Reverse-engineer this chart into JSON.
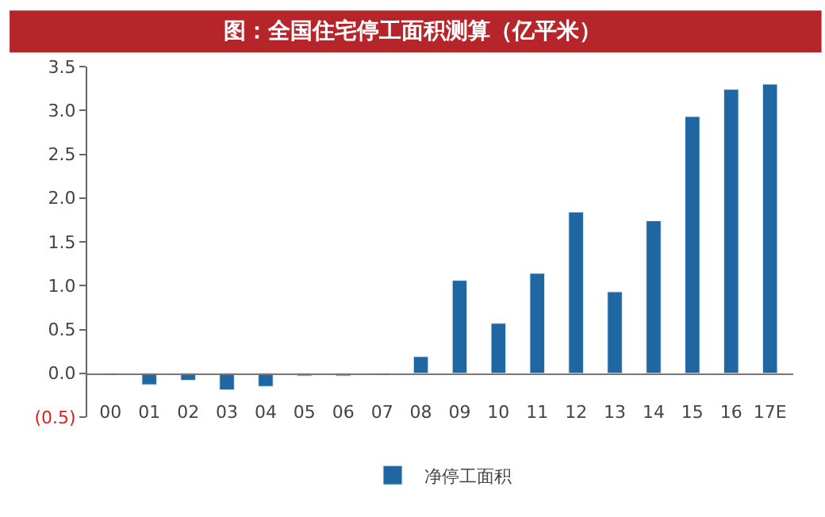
{
  "chart_data": {
    "type": "bar",
    "title": "图：全国住宅停工面积测算（亿平米）",
    "categories": [
      "00",
      "01",
      "02",
      "03",
      "04",
      "05",
      "06",
      "07",
      "08",
      "09",
      "10",
      "11",
      "12",
      "13",
      "14",
      "15",
      "16",
      "17E"
    ],
    "series": [
      {
        "name": "净停工面积",
        "color": "#1f67a3",
        "values": [
          -0.02,
          -0.13,
          -0.08,
          -0.19,
          -0.15,
          -0.03,
          -0.03,
          -0.02,
          0.19,
          1.06,
          0.57,
          1.14,
          1.84,
          0.93,
          1.74,
          2.93,
          3.24,
          3.3
        ]
      }
    ],
    "ylim": [
      -0.5,
      3.5
    ],
    "yticks": [
      {
        "value": -0.5,
        "label": "(0.5)"
      },
      {
        "value": 0,
        "label": "0.0"
      },
      {
        "value": 0.5,
        "label": "0.5"
      },
      {
        "value": 1,
        "label": "1.0"
      },
      {
        "value": 1.5,
        "label": "1.5"
      },
      {
        "value": 2,
        "label": "2.0"
      },
      {
        "value": 2.5,
        "label": "2.5"
      },
      {
        "value": 3,
        "label": "3.0"
      },
      {
        "value": 3.5,
        "label": "3.5"
      }
    ],
    "legend": "bottom"
  }
}
